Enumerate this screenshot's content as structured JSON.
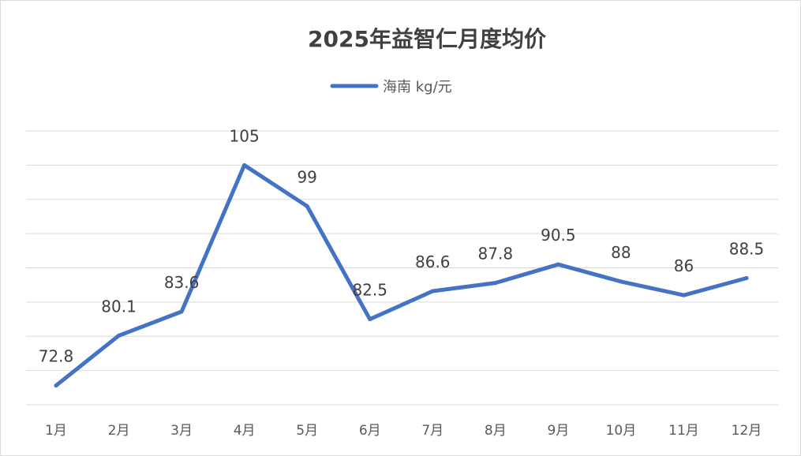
{
  "chart_data": {
    "type": "line",
    "title": "2025年益智仁月度均价",
    "categories": [
      "1月",
      "2月",
      "3月",
      "4月",
      "5月",
      "6月",
      "7月",
      "8月",
      "9月",
      "10月",
      "11月",
      "12月"
    ],
    "series": [
      {
        "name": "海南 kg/元",
        "color": "#4472C4",
        "values": [
          72.8,
          80.1,
          83.6,
          105,
          99,
          82.5,
          86.6,
          87.8,
          90.5,
          88,
          86,
          88.5
        ],
        "labels": [
          "72.8",
          "80.1",
          "83.6",
          "105",
          "99",
          "82.5",
          "86.6",
          "87.8",
          "90.5",
          "88",
          "86",
          "88.5"
        ]
      }
    ],
    "legend_position": "top",
    "grid": true,
    "ylim": [
      70,
      110
    ],
    "y_tick_labels_shown": false
  }
}
